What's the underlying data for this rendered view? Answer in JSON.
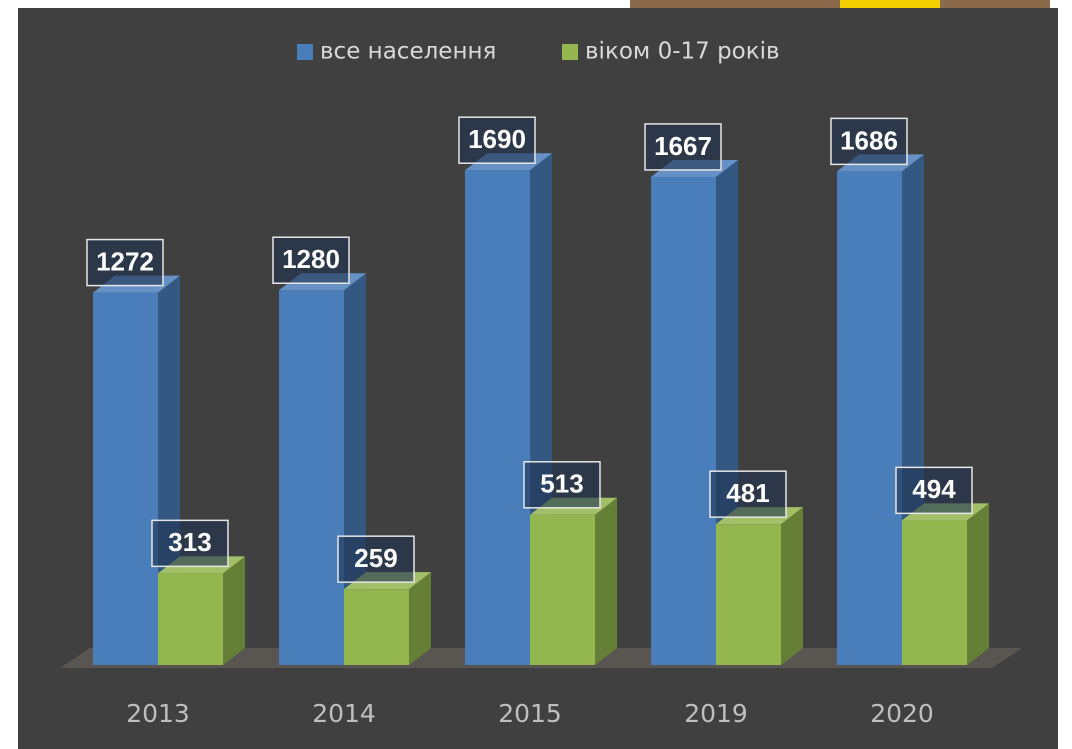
{
  "chart_data": {
    "type": "bar3d",
    "categories": [
      "2013",
      "2014",
      "2015",
      "2019",
      "2020"
    ],
    "series": [
      {
        "name": "все населення",
        "color": "#4a7ebb",
        "values": [
          1272,
          1280,
          1690,
          1667,
          1686
        ]
      },
      {
        "name": "віком 0-17 років",
        "color": "#93b64f",
        "values": [
          313,
          259,
          513,
          481,
          494
        ]
      }
    ],
    "ylim": [
      0,
      1800
    ],
    "legend": "top"
  }
}
